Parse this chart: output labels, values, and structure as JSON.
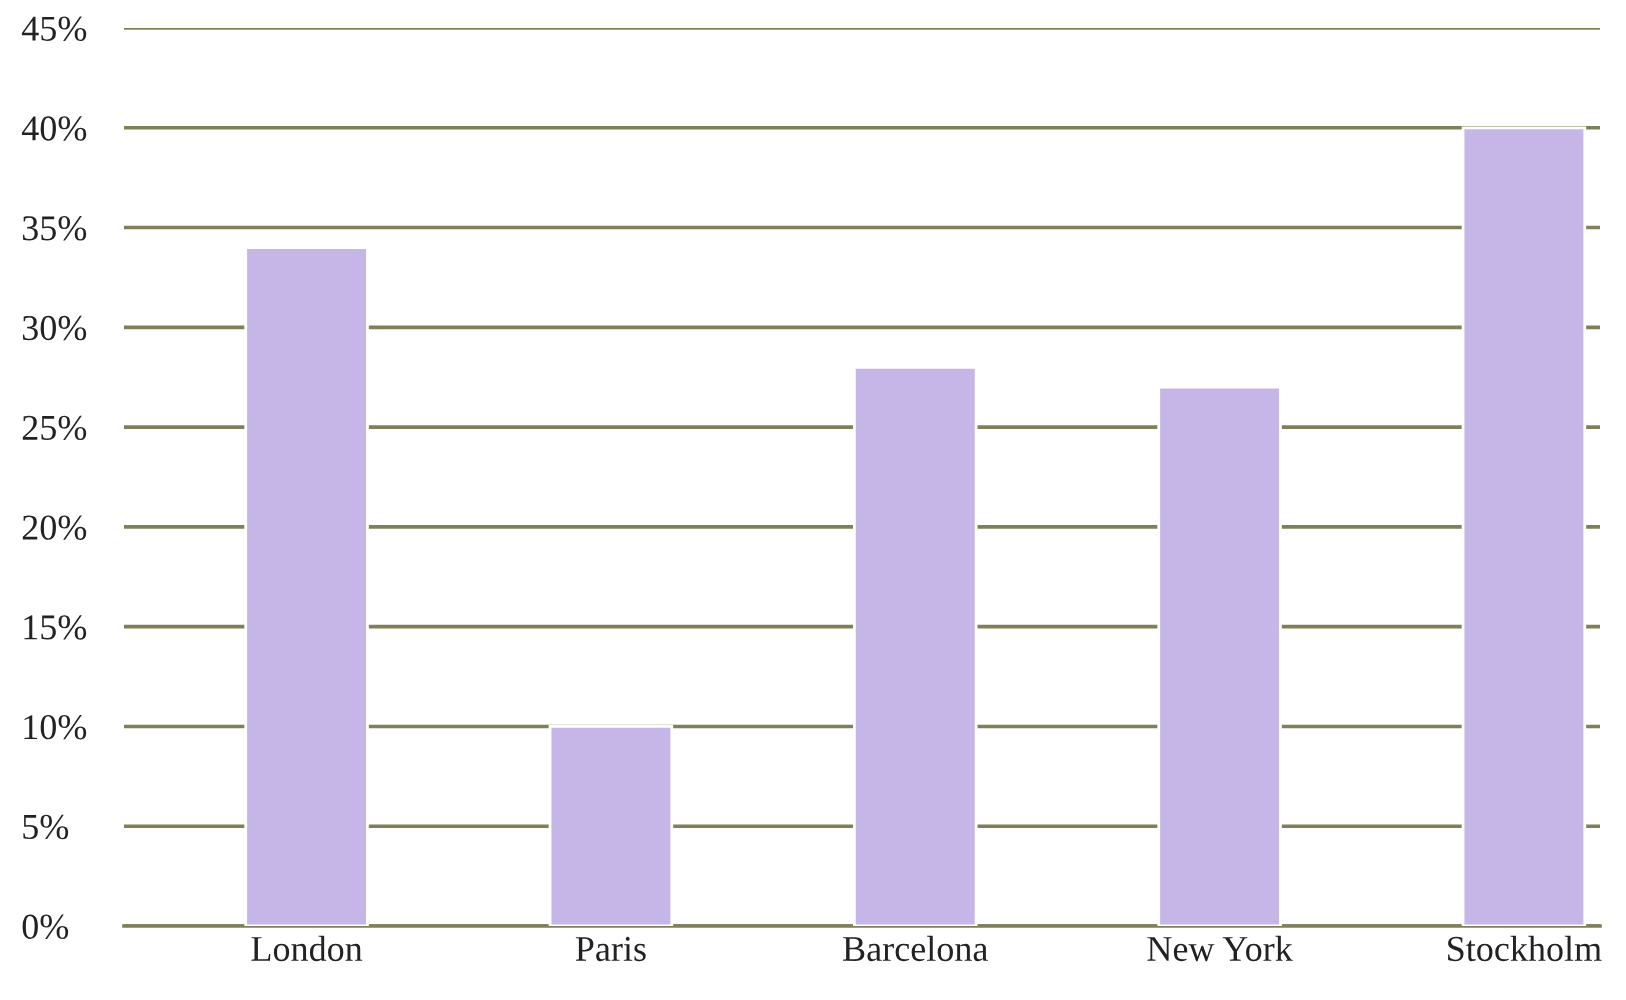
{
  "chart_data": {
    "type": "bar",
    "categories": [
      "London",
      "Paris",
      "Barcelona",
      "New York",
      "Stockholm"
    ],
    "values": [
      34,
      10,
      28,
      27,
      40
    ],
    "color": "#c6b5e7",
    "ylim": [
      0,
      45
    ],
    "yticks": [
      {
        "value": 0,
        "label": "0%"
      },
      {
        "value": 5,
        "label": "5%"
      },
      {
        "value": 10,
        "label": "10%"
      },
      {
        "value": 15,
        "label": "15%"
      },
      {
        "value": 20,
        "label": "20%"
      },
      {
        "value": 25,
        "label": "25%"
      },
      {
        "value": 30,
        "label": "30%"
      },
      {
        "value": 35,
        "label": "35%"
      },
      {
        "value": 40,
        "label": "40%"
      },
      {
        "value": 45,
        "label": "45%"
      }
    ],
    "grid": "y"
  }
}
